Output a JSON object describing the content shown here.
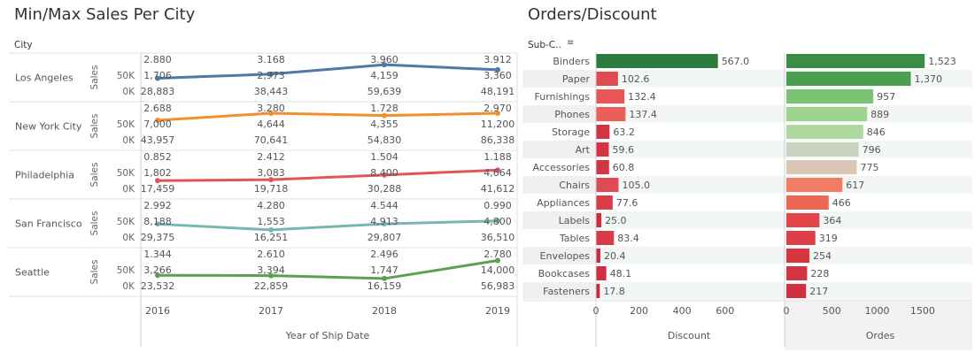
{
  "left": {
    "title": "Min/Max Sales Per City",
    "row_header": "City",
    "measure_label": "Sales",
    "x_axis_title": "Year of Ship Date"
  },
  "right": {
    "title": "Orders/Discount",
    "row_header": "Sub-C..",
    "left_axis_title": "Discount",
    "right_axis_title": "Ordes"
  },
  "colors": {
    "los_angeles": "#4e79a7",
    "new_york": "#f28e2b",
    "philadelphia": "#e15759",
    "san_francisco": "#76b7b2",
    "seattle": "#59a14f"
  },
  "chart_data": [
    {
      "type": "line",
      "title": "Min/Max Sales Per City",
      "xlabel": "Year of Ship Date",
      "ylabel": "Sales",
      "x": [
        "2016",
        "2017",
        "2018",
        "2019"
      ],
      "ylim": [
        0,
        60000
      ],
      "yticks": [
        "0K",
        "50K"
      ],
      "panels": [
        {
          "city": "Los Angeles",
          "color": "#4e79a7",
          "values": [
            28883,
            38443,
            59639,
            48191
          ],
          "label_top": [
            "2.880",
            "3.168",
            "3.960",
            "3.912"
          ],
          "label_mid": [
            "1,706",
            "2,973",
            "4,159",
            "3,360"
          ],
          "label_bottom": [
            "28,883",
            "38,443",
            "59,639",
            "48,191"
          ]
        },
        {
          "city": "New York City",
          "color": "#f28e2b",
          "values": [
            43957,
            70641,
            54830,
            86338
          ],
          "label_top": [
            "2.688",
            "3.280",
            "1.728",
            "2.970"
          ],
          "label_mid": [
            "7,000",
            "4,644",
            "4,355",
            "11,200"
          ],
          "label_bottom": [
            "43,957",
            "70,641",
            "54,830",
            "86,338"
          ]
        },
        {
          "city": "Philadelphia",
          "color": "#e15759",
          "values": [
            17459,
            19718,
            30288,
            41612
          ],
          "label_top": [
            "0.852",
            "2.412",
            "1.504",
            "1.188"
          ],
          "label_mid": [
            "1,802",
            "3,083",
            "8,400",
            "4,664"
          ],
          "label_bottom": [
            "17,459",
            "19,718",
            "30,288",
            "41,612"
          ]
        },
        {
          "city": "San Francisco",
          "color": "#76b7b2",
          "values": [
            29375,
            16251,
            29807,
            36510
          ],
          "label_top": [
            "2.992",
            "4.280",
            "4.544",
            "0.990"
          ],
          "label_mid": [
            "8,188",
            "1,553",
            "4,913",
            "4,800"
          ],
          "label_bottom": [
            "29,375",
            "16,251",
            "29,807",
            "36,510"
          ]
        },
        {
          "city": "Seattle",
          "color": "#59a14f",
          "values": [
            23532,
            22859,
            16159,
            56983
          ],
          "label_top": [
            "1.344",
            "2.610",
            "2.496",
            "2.780"
          ],
          "label_mid": [
            "3,266",
            "3,394",
            "1,747",
            "14,000"
          ],
          "label_bottom": [
            "23,532",
            "22,859",
            "16,159",
            "56,983"
          ]
        }
      ]
    },
    {
      "type": "bar",
      "title": "Orders/Discount",
      "categories": [
        "Binders",
        "Paper",
        "Furnishings",
        "Phones",
        "Storage",
        "Art",
        "Accessories",
        "Chairs",
        "Appliances",
        "Labels",
        "Tables",
        "Envelopes",
        "Bookcases",
        "Fasteners"
      ],
      "series": [
        {
          "name": "Discount",
          "values": [
            567.0,
            102.6,
            132.4,
            137.4,
            63.2,
            59.6,
            60.8,
            105.0,
            77.6,
            25.0,
            83.4,
            20.4,
            48.1,
            17.8
          ],
          "labels": [
            "567.0",
            "102.6",
            "132.4",
            "137.4",
            "63.2",
            "59.6",
            "60.8",
            "105.0",
            "77.6",
            "25.0",
            "83.4",
            "20.4",
            "48.1",
            "17.8"
          ],
          "colors": [
            "#2d7a3e",
            "#e04a52",
            "#e85657",
            "#ec5e59",
            "#d43344",
            "#d43344",
            "#d43344",
            "#e04a52",
            "#da3d4a",
            "#cc2a3f",
            "#d83a48",
            "#cc2a3f",
            "#d02f42",
            "#cb283d"
          ],
          "xlabel": "Discount",
          "xlim": [
            0,
            700
          ],
          "ticks": [
            "0",
            "200",
            "400",
            "600"
          ]
        },
        {
          "name": "Ordes",
          "values": [
            1523,
            1370,
            957,
            889,
            846,
            796,
            775,
            617,
            466,
            364,
            319,
            254,
            228,
            217
          ],
          "labels": [
            "1,523",
            "1,370",
            "957",
            "889",
            "846",
            "796",
            "775",
            "617",
            "466",
            "364",
            "319",
            "254",
            "228",
            "217"
          ],
          "colors": [
            "#3b8c47",
            "#4a9e52",
            "#7cc274",
            "#9ed38e",
            "#afd8a1",
            "#cbd4c1",
            "#d9c6b4",
            "#f07c63",
            "#ee6753",
            "#e2454a",
            "#de3f48",
            "#d8363f",
            "#d43344",
            "#d02f42"
          ],
          "xlabel": "Ordes",
          "xlim": [
            0,
            1950
          ],
          "ticks": [
            "0",
            "500",
            "1000",
            "1500"
          ]
        }
      ]
    }
  ]
}
